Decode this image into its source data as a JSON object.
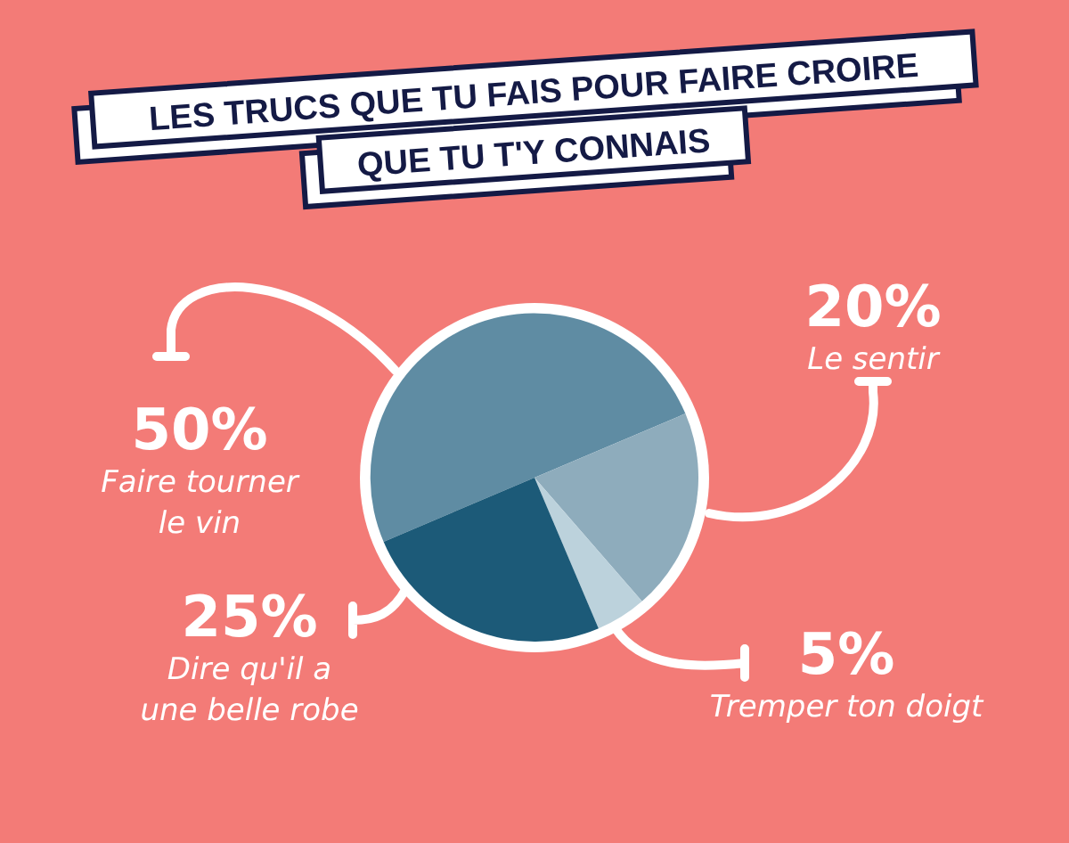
{
  "chart_data": {
    "type": "pie",
    "title": "LES TRUCS QUE TU FAIS POUR FAIRE CROIRE QUE TU T'Y CONNAIS",
    "categories": [
      "Faire tourner le vin",
      "Le sentir",
      "Tremper ton doigt",
      "Dire qu'il a une belle robe"
    ],
    "values": [
      50,
      20,
      5,
      25
    ],
    "value_labels": [
      "50%",
      "20%",
      "5%",
      "25%"
    ],
    "colors": [
      "#5f8ca3",
      "#8eacbc",
      "#bcd2dc",
      "#1c5a78"
    ]
  }
}
